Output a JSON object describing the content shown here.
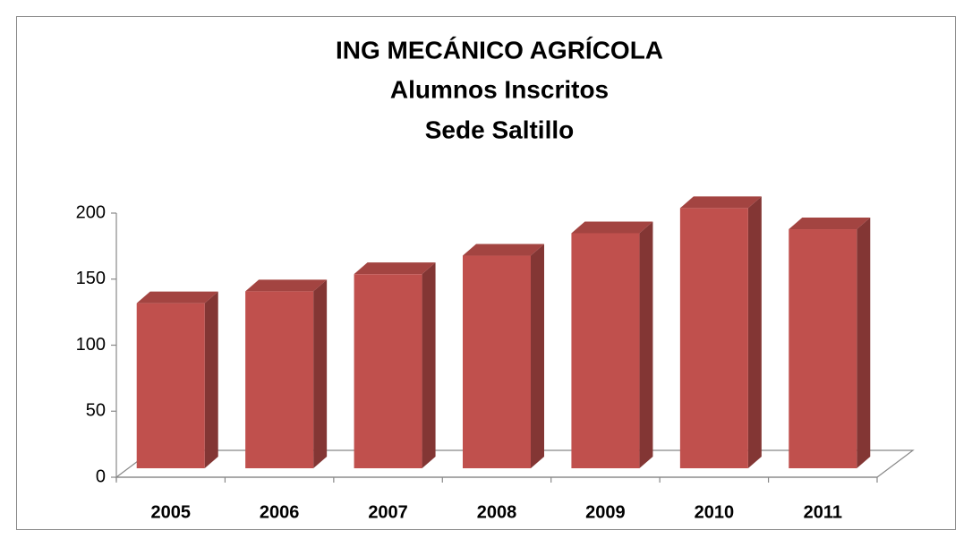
{
  "chart_data": {
    "type": "bar3d",
    "title": [
      "ING MECÁNICO AGRÍCOLA",
      "Alumnos Inscritos",
      "Sede Saltillo"
    ],
    "categories": [
      "2005",
      "2006",
      "2007",
      "2008",
      "2009",
      "2010",
      "2011"
    ],
    "values": [
      125,
      134,
      147,
      161,
      178,
      197,
      181
    ],
    "color": "#c0504d",
    "ylim": [
      0,
      200
    ],
    "yticks": [
      0,
      50,
      100,
      150,
      200
    ],
    "grid": false
  }
}
